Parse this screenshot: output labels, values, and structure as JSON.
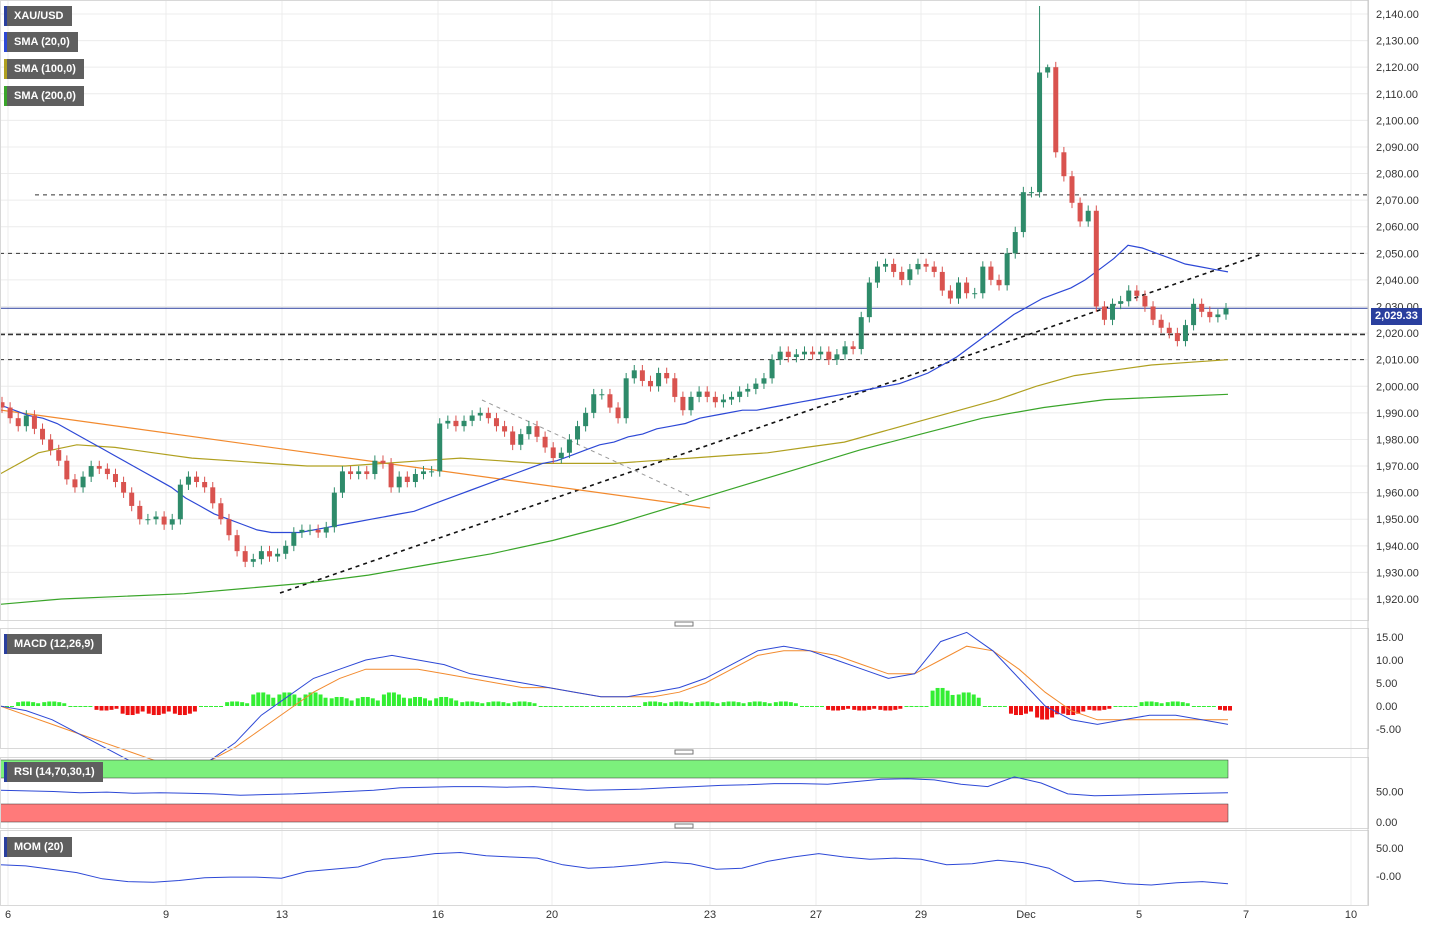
{
  "indicators": {
    "main": [
      {
        "label": "XAU/USD",
        "color": "#2a3f9e"
      },
      {
        "label": "SMA (20,0)",
        "color": "#2d48d6"
      },
      {
        "label": "SMA (100,0)",
        "color": "#b0a020"
      },
      {
        "label": "SMA (200,0)",
        "color": "#3aa52a"
      }
    ],
    "macd": {
      "label": "MACD (12,26,9)",
      "color": "#2a3f9e"
    },
    "rsi": {
      "label": "RSI (14,70,30,1)",
      "color": "#2a3f9e"
    },
    "mom": {
      "label": "MOM (20)",
      "color": "#2a3f9e"
    }
  },
  "last_price": "2,029.33",
  "colors": {
    "up": "#2e8b6a",
    "down": "#d9534f",
    "sma20": "#2d48d6",
    "sma100": "#b0a020",
    "sma200": "#3aa52a",
    "downtrend": "#f28a2e",
    "macd": "#2d48d6",
    "signal": "#f28a2e",
    "hist_pos": "#33ee33",
    "hist_neg": "#ee1111",
    "rsi_ob": "#7cf07c",
    "rsi_os": "#ff7a7a"
  },
  "chart_data": {
    "type": "candlestick",
    "symbol": "XAU/USD",
    "x_tick_labels": [
      "6",
      "9",
      "13",
      "16",
      "20",
      "23",
      "27",
      "29",
      "Dec",
      "5",
      "7",
      "10"
    ],
    "y_ticks": [
      "2,140.00",
      "2,130.00",
      "2,120.00",
      "2,110.00",
      "2,100.00",
      "2,090.00",
      "2,080.00",
      "2,070.00",
      "2,060.00",
      "2,050.00",
      "2,040.00",
      "2,030.00",
      "2,020.00",
      "2,010.00",
      "2,000.00",
      "1,990.00",
      "1,980.00",
      "1,970.00",
      "1,960.00",
      "1,950.00",
      "1,940.00",
      "1,930.00",
      "1,920.00"
    ],
    "ylim": [
      1917,
      2143
    ],
    "candles_close": [
      1992,
      1988,
      1985,
      1989,
      1984,
      1980,
      1976,
      1972,
      1965,
      1962,
      1966,
      1970,
      1969,
      1967,
      1964,
      1960,
      1955,
      1950,
      1950,
      1951,
      1948,
      1950,
      1963,
      1966,
      1964,
      1962,
      1956,
      1950,
      1944,
      1938,
      1934,
      1935,
      1938,
      1936,
      1937,
      1940,
      1945,
      1946,
      1946,
      1945,
      1947,
      1960,
      1968,
      1967,
      1968,
      1967,
      1972,
      1971,
      1962,
      1966,
      1964,
      1967,
      1968,
      1968,
      1986,
      1987,
      1985,
      1987,
      1989,
      1990,
      1988,
      1985,
      1983,
      1978,
      1982,
      1985,
      1981,
      1977,
      1973,
      1975,
      1980,
      1985,
      1990,
      1997,
      1997,
      1992,
      1988,
      2003,
      2006,
      2002,
      2000,
      2005,
      2003,
      1996,
      1991,
      1996,
      1998,
      1996,
      1994,
      1995,
      1996,
      1998,
      1999,
      2001,
      2003,
      2010,
      2013,
      2011,
      2012,
      2013,
      2012,
      2013,
      2010,
      2012,
      2015,
      2014,
      2026,
      2039,
      2045,
      2046,
      2043,
      2040,
      2044,
      2046,
      2045,
      2043,
      2036,
      2033,
      2039,
      2035,
      2035,
      2045,
      2040,
      2038,
      2050,
      2058,
      2073,
      2073,
      2118,
      2120,
      2088,
      2079,
      2069,
      2062,
      2066,
      2030,
      2025,
      2031,
      2032,
      2036,
      2034,
      2030,
      2025,
      2022,
      2020,
      2017,
      2023,
      2031,
      2028,
      2026,
      2027,
      2029.33
    ],
    "sma20": [
      1993,
      1991,
      1989,
      1988,
      1986,
      1983,
      1980,
      1977,
      1974,
      1971,
      1968,
      1965,
      1962,
      1958,
      1955,
      1952,
      1950,
      1948,
      1946,
      1945,
      1945,
      1945,
      1946,
      1947,
      1948,
      1949,
      1950,
      1951,
      1952,
      1953,
      1955,
      1957,
      1959,
      1961,
      1963,
      1965,
      1967,
      1969,
      1971,
      1972,
      1974,
      1976,
      1978,
      1979,
      1981,
      1982,
      1984,
      1985,
      1986,
      1988,
      1989,
      1990,
      1991,
      1991,
      1992,
      1993,
      1994,
      1995,
      1996,
      1997,
      1998,
      1999,
      2000,
      2001,
      2003,
      2005,
      2008,
      2011,
      2015,
      2019,
      2023,
      2027,
      2030,
      2033,
      2035,
      2037,
      2040,
      2044,
      2048,
      2053,
      2052,
      2050,
      2048,
      2046,
      2045,
      2044,
      2043
    ],
    "sma100": [
      1967,
      1975,
      1978,
      1977,
      1975,
      1973,
      1972,
      1971,
      1970,
      1970,
      1971,
      1972,
      1973,
      1972,
      1971,
      1971,
      1971,
      1972,
      1973,
      1974,
      1975,
      1977,
      1979,
      1983,
      1987,
      1991,
      1995,
      2000,
      2004,
      2006,
      2008,
      2009,
      2010
    ],
    "sma200": [
      1918,
      1920,
      1921,
      1922,
      1924,
      1926,
      1929,
      1933,
      1937,
      1942,
      1948,
      1955,
      1962,
      1969,
      1976,
      1982,
      1988,
      1992,
      1995,
      1996,
      1997
    ],
    "macd": [
      0,
      -1,
      -3,
      -6,
      -9,
      -12,
      -14,
      -15,
      -12,
      -8,
      -2,
      2,
      6,
      8,
      10,
      11,
      10,
      9,
      7,
      6,
      5,
      4,
      3,
      2,
      2,
      3,
      4,
      6,
      9,
      12,
      13,
      12,
      10,
      8,
      6,
      7,
      14,
      16,
      12,
      6,
      0,
      -3,
      -4,
      -3,
      -2,
      -2,
      -3,
      -4
    ],
    "signal": [
      0,
      -2,
      -4,
      -6,
      -8,
      -10,
      -12,
      -13,
      -12,
      -9,
      -5,
      -1,
      3,
      6,
      8,
      8,
      8,
      7,
      6,
      5,
      4,
      4,
      3,
      2,
      2,
      2,
      3,
      5,
      8,
      11,
      12,
      12,
      11,
      9,
      7,
      7,
      10,
      13,
      12,
      8,
      3,
      -1,
      -3,
      -3,
      -3,
      -3,
      -3,
      -3
    ],
    "rsi": [
      52,
      51,
      50,
      48,
      49,
      47,
      48,
      47,
      46,
      44,
      45,
      46,
      48,
      50,
      52,
      56,
      57,
      58,
      58,
      57,
      58,
      55,
      52,
      53,
      54,
      56,
      58,
      60,
      61,
      63,
      63,
      62,
      66,
      70,
      71,
      69,
      62,
      58,
      74,
      64,
      46,
      43,
      44,
      45,
      46,
      47,
      48
    ],
    "rsi_levels": {
      "overbought": 70,
      "oversold": 30
    },
    "rsi_ticks": [
      "50.00",
      "0.00"
    ],
    "macd_ticks": [
      "15.00",
      "10.00",
      "5.00",
      "0.00",
      "-5.00"
    ],
    "mom_ticks": [
      "50.00",
      "-0.00"
    ],
    "mom": [
      20,
      18,
      12,
      6,
      -5,
      -10,
      -11,
      -8,
      -3,
      -2,
      -2,
      -4,
      8,
      12,
      16,
      30,
      34,
      40,
      42,
      36,
      34,
      32,
      20,
      14,
      16,
      20,
      25,
      22,
      12,
      14,
      26,
      34,
      40,
      34,
      30,
      32,
      30,
      20,
      22,
      28,
      24,
      14,
      -10,
      -8,
      -14,
      -16,
      -12,
      -10,
      -14
    ]
  }
}
